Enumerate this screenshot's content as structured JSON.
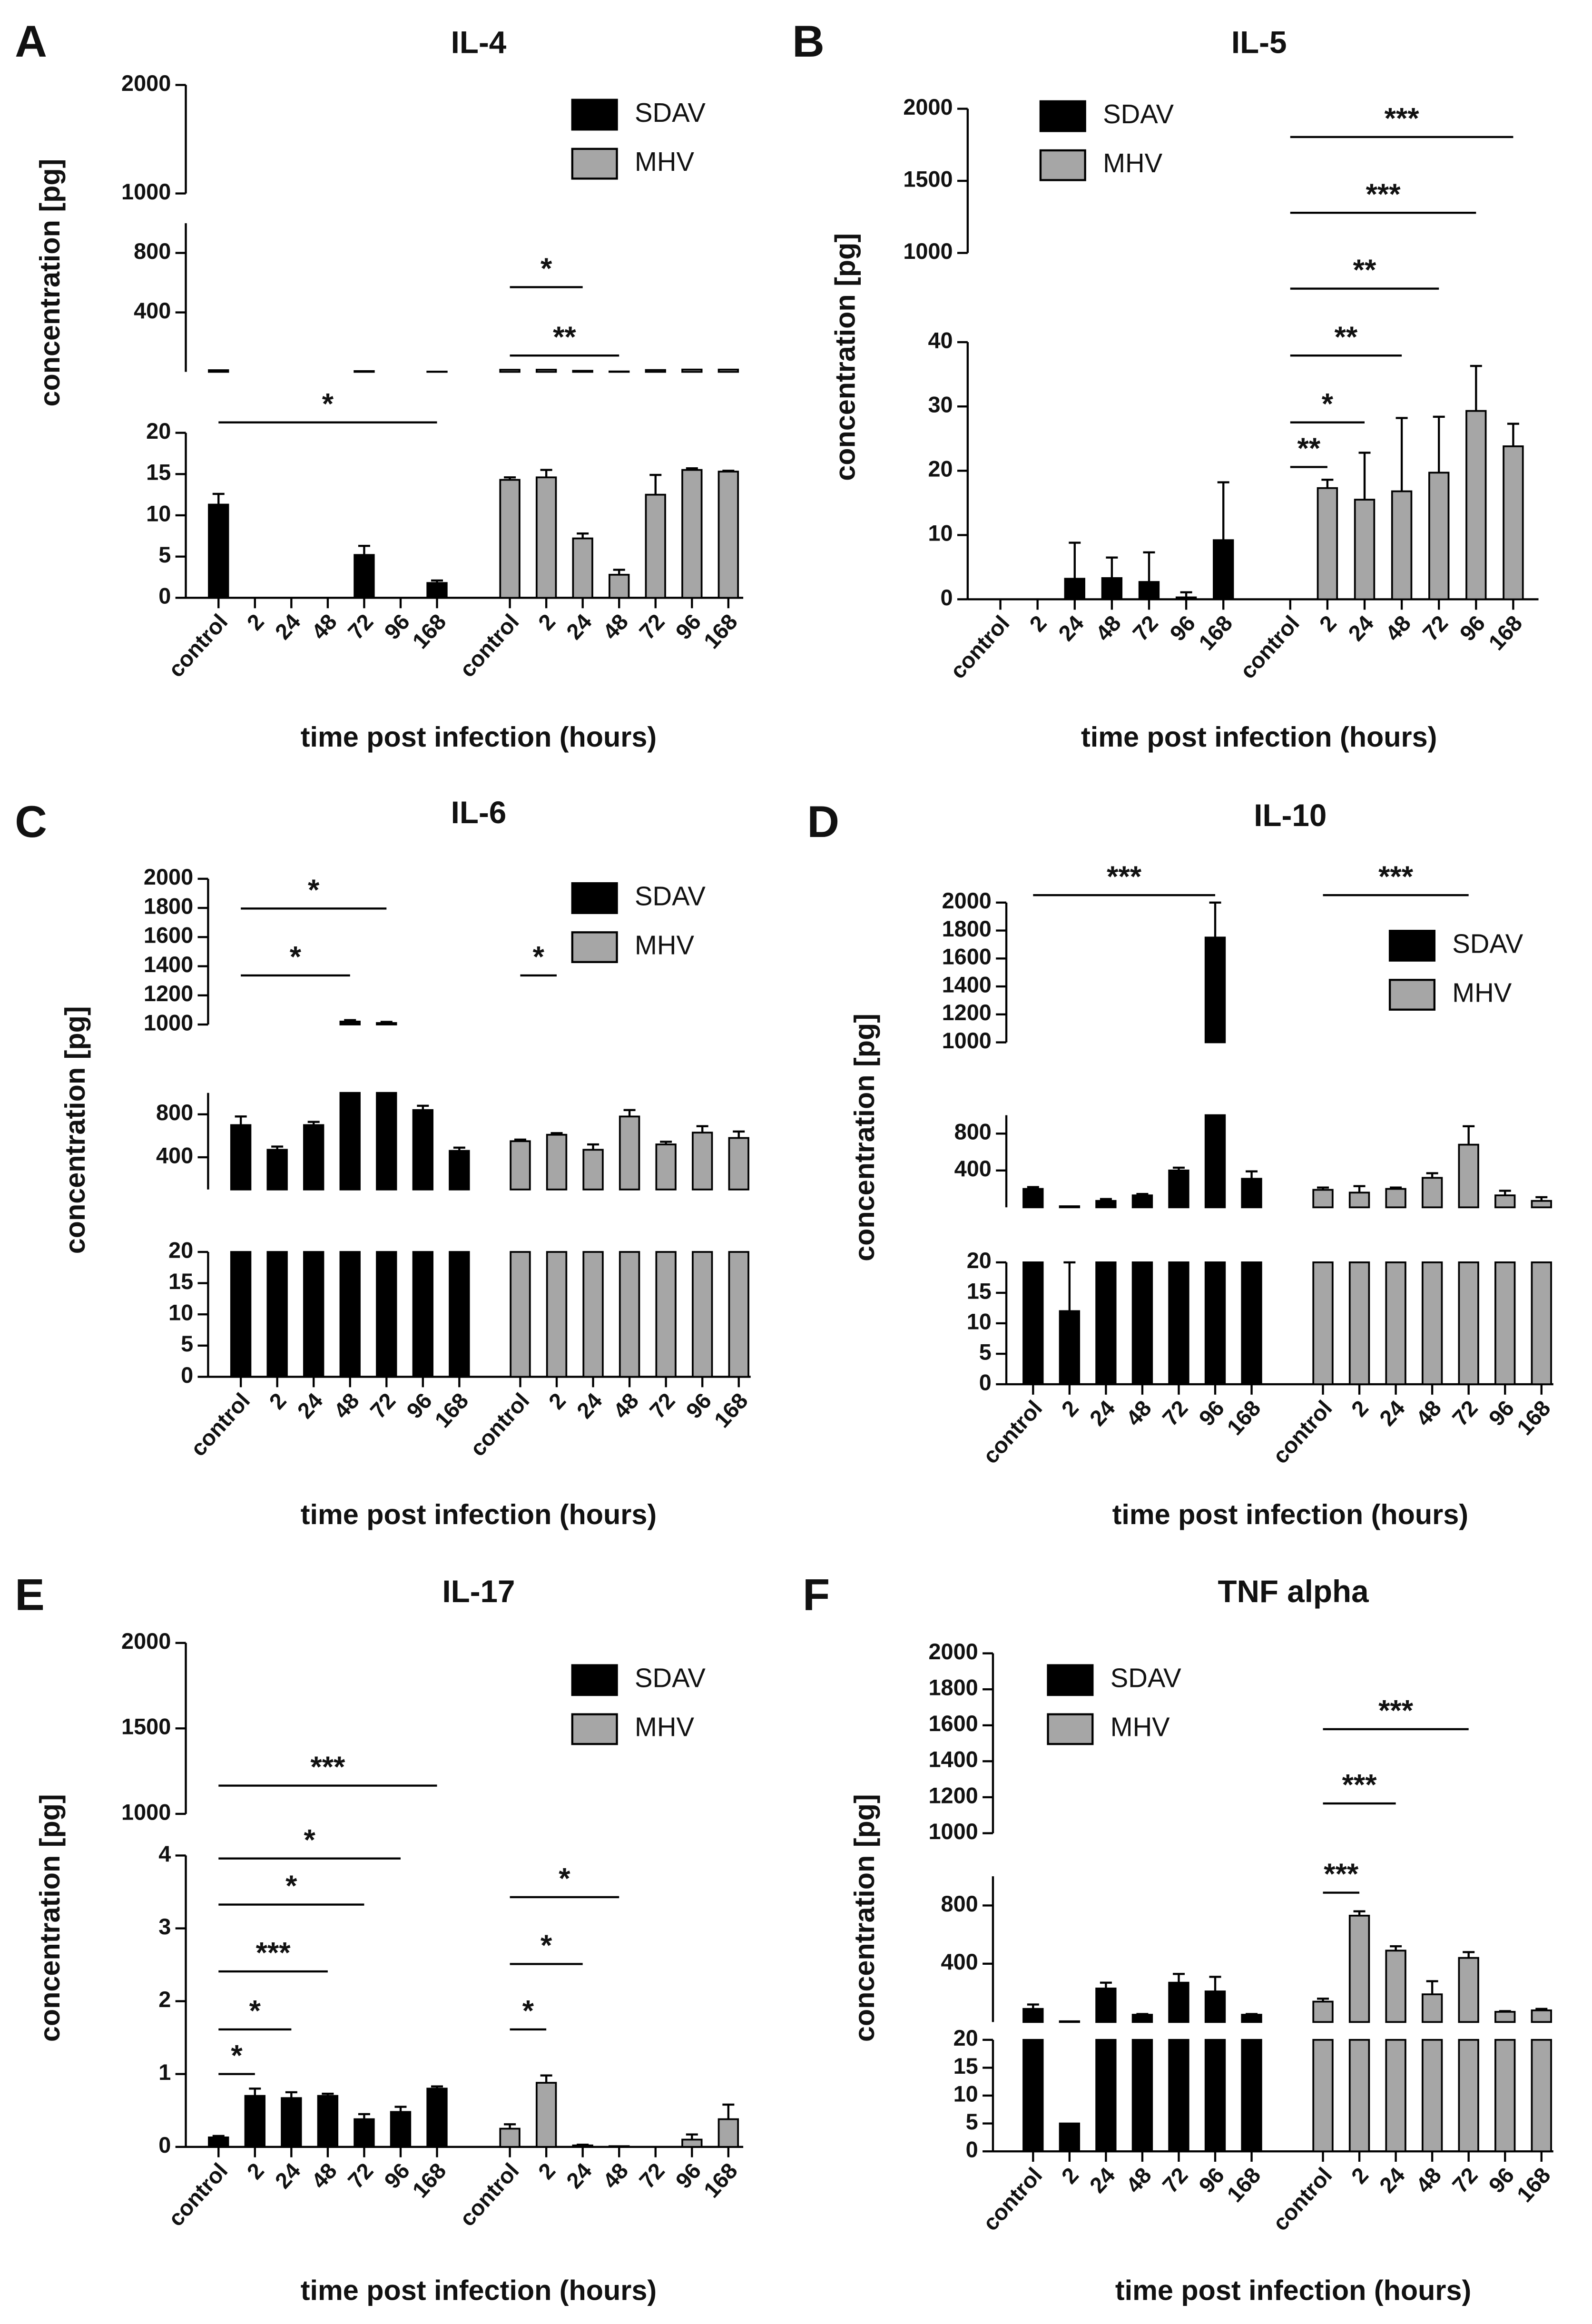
{
  "chart_data": [
    {
      "type": "bar",
      "panel": "A",
      "title": "IL-4",
      "ylabel": "concentration [pg]",
      "xlabel": "time post infection (hours)",
      "categories": [
        "control",
        "2",
        "24",
        "48",
        "72",
        "96",
        "168"
      ],
      "segments": [
        {
          "ylim": [
            0,
            20
          ],
          "yticks": [
            0,
            5,
            10,
            15,
            20
          ]
        },
        {
          "ylim": [
            0,
            1000
          ],
          "yticks": [
            400,
            800
          ]
        },
        {
          "ylim": [
            1000,
            2000
          ],
          "yticks": [
            1000,
            2000
          ]
        }
      ],
      "series": [
        {
          "name": "SDAV",
          "color": "#000000",
          "values": [
            11.3,
            0,
            0,
            0,
            5.2,
            0,
            1.8
          ],
          "errors": [
            1.3,
            0,
            0,
            0,
            1.1,
            0,
            0.3
          ],
          "brackets": [
            {
              "label": "*",
              "to": "168"
            }
          ]
        },
        {
          "name": "MHV",
          "color": "#a6a6a6",
          "values": [
            14.3,
            14.6,
            7.2,
            2.8,
            12.5,
            15.5,
            15.3
          ],
          "errors": [
            0.3,
            0.9,
            0.6,
            0.6,
            2.4,
            0.2,
            0.1
          ],
          "brackets": [
            {
              "label": "*",
              "to": "24"
            },
            {
              "label": "**",
              "to": "48"
            }
          ]
        }
      ]
    },
    {
      "type": "bar",
      "panel": "B",
      "title": "IL-5",
      "ylabel": "concentration [pg]",
      "xlabel": "time post infection (hours)",
      "categories": [
        "control",
        "2",
        "24",
        "48",
        "72",
        "96",
        "168"
      ],
      "segments": [
        {
          "ylim": [
            0,
            40
          ],
          "yticks": [
            0,
            10,
            20,
            30,
            40
          ]
        },
        {
          "ylim": [
            1000,
            2000
          ],
          "yticks": [
            1000,
            1500,
            2000
          ]
        }
      ],
      "series": [
        {
          "name": "SDAV",
          "color": "#000000",
          "values": [
            0,
            0,
            3.2,
            3.3,
            2.7,
            0.3,
            9.2
          ],
          "errors": [
            0,
            0,
            5.6,
            3.2,
            4.6,
            0.8,
            9
          ],
          "brackets": []
        },
        {
          "name": "MHV",
          "color": "#a6a6a6",
          "values": [
            0,
            17.3,
            15.5,
            16.8,
            19.7,
            29.3,
            23.8
          ],
          "errors": [
            0,
            1.3,
            7.3,
            11.4,
            8.7,
            7,
            3.5
          ],
          "brackets": [
            {
              "label": "**",
              "to": "2"
            },
            {
              "label": "*",
              "to": "24"
            },
            {
              "label": "**",
              "to": "48"
            },
            {
              "label": "**",
              "to": "72"
            },
            {
              "label": "***",
              "to": "96"
            },
            {
              "label": "***",
              "to": "168"
            }
          ]
        }
      ]
    },
    {
      "type": "bar",
      "panel": "C",
      "title": "IL-6",
      "ylabel": "concentration [pg]",
      "xlabel": "time post infection (hours)",
      "categories": [
        "control",
        "2",
        "24",
        "48",
        "72",
        "96",
        "168"
      ],
      "segments": [
        {
          "ylim": [
            0,
            20
          ],
          "yticks": [
            0,
            5,
            10,
            15,
            20
          ]
        },
        {
          "ylim": [
            100,
            1000
          ],
          "yticks": [
            400,
            800
          ]
        },
        {
          "ylim": [
            1000,
            2000
          ],
          "yticks": [
            1000,
            1200,
            1400,
            1600,
            1800,
            2000
          ]
        }
      ],
      "series": [
        {
          "name": "SDAV",
          "color": "#000000",
          "values": [
            700,
            470,
            700,
            1020,
            1010,
            840,
            460
          ],
          "errors": [
            80,
            30,
            30,
            10,
            8,
            40,
            30
          ],
          "brackets": [
            {
              "label": "*",
              "to": "72"
            },
            {
              "label": "*",
              "to": "48"
            }
          ]
        },
        {
          "name": "MHV",
          "color": "#a6a6a6",
          "values": [
            550,
            610,
            470,
            780,
            520,
            630,
            580
          ],
          "errors": [
            15,
            15,
            50,
            60,
            25,
            60,
            60
          ],
          "brackets": [
            {
              "label": "*",
              "to": "2"
            }
          ]
        }
      ]
    },
    {
      "type": "bar",
      "panel": "D",
      "title": "IL-10",
      "ylabel": "concentration [pg]",
      "xlabel": "time post infection (hours)",
      "categories": [
        "control",
        "2",
        "24",
        "48",
        "72",
        "96",
        "168"
      ],
      "segments": [
        {
          "ylim": [
            0,
            20
          ],
          "yticks": [
            0,
            5,
            10,
            15,
            20
          ]
        },
        {
          "ylim": [
            0,
            1000
          ],
          "yticks": [
            400,
            800
          ]
        },
        {
          "ylim": [
            1000,
            2000
          ],
          "yticks": [
            1000,
            1200,
            1400,
            1600,
            1800,
            2000
          ]
        }
      ],
      "series": [
        {
          "name": "SDAV",
          "color": "#000000",
          "values": [
            200,
            12,
            70,
            130,
            400,
            1750,
            310
          ],
          "errors": [
            20,
            8,
            20,
            15,
            30,
            250,
            80
          ],
          "brackets": [
            {
              "label": "***",
              "to": "96"
            }
          ]
        },
        {
          "name": "MHV",
          "color": "#a6a6a6",
          "values": [
            190,
            160,
            200,
            320,
            680,
            130,
            70
          ],
          "errors": [
            25,
            70,
            15,
            50,
            200,
            50,
            40
          ],
          "brackets": [
            {
              "label": "***",
              "to": "72"
            }
          ]
        }
      ]
    },
    {
      "type": "bar",
      "panel": "E",
      "title": "IL-17",
      "ylabel": "concentration [pg]",
      "xlabel": "time post infection (hours)",
      "categories": [
        "control",
        "2",
        "24",
        "48",
        "72",
        "96",
        "168"
      ],
      "segments": [
        {
          "ylim": [
            0,
            4
          ],
          "yticks": [
            0,
            1,
            2,
            3,
            4
          ]
        },
        {
          "ylim": [
            1000,
            2000
          ],
          "yticks": [
            1000,
            1500,
            2000
          ]
        }
      ],
      "series": [
        {
          "name": "SDAV",
          "color": "#000000",
          "values": [
            0.13,
            0.7,
            0.67,
            0.7,
            0.38,
            0.48,
            0.8
          ],
          "errors": [
            0.02,
            0.1,
            0.08,
            0.03,
            0.07,
            0.07,
            0.03
          ],
          "brackets": [
            {
              "label": "*",
              "to": "2"
            },
            {
              "label": "*",
              "to": "24"
            },
            {
              "label": "***",
              "to": "48"
            },
            {
              "label": "*",
              "to": "72"
            },
            {
              "label": "*",
              "to": "96"
            },
            {
              "label": "***",
              "to": "168"
            }
          ]
        },
        {
          "name": "MHV",
          "color": "#a6a6a6",
          "values": [
            0.25,
            0.88,
            0.02,
            0.01,
            0,
            0.1,
            0.38
          ],
          "errors": [
            0.06,
            0.1,
            0.01,
            0,
            0,
            0.07,
            0.2
          ],
          "brackets": [
            {
              "label": "*",
              "to": "2"
            },
            {
              "label": "*",
              "to": "24"
            },
            {
              "label": "*",
              "to": "48"
            }
          ]
        }
      ]
    },
    {
      "type": "bar",
      "panel": "F",
      "title": "TNF alpha",
      "ylabel": "concentration [pg]",
      "xlabel": "time post infection (hours)",
      "categories": [
        "control",
        "2",
        "24",
        "48",
        "72",
        "96",
        "168"
      ],
      "segments": [
        {
          "ylim": [
            0,
            20
          ],
          "yticks": [
            0,
            5,
            10,
            15,
            20
          ]
        },
        {
          "ylim": [
            0,
            1000
          ],
          "yticks": [
            400,
            800
          ]
        },
        {
          "ylim": [
            1000,
            2000
          ],
          "yticks": [
            1000,
            1200,
            1400,
            1600,
            1800,
            2000
          ]
        }
      ],
      "series": [
        {
          "name": "SDAV",
          "color": "#000000",
          "values": [
            90,
            5,
            230,
            50,
            270,
            210,
            50
          ],
          "errors": [
            30,
            0,
            40,
            5,
            60,
            100,
            5
          ],
          "brackets": []
        },
        {
          "name": "MHV",
          "color": "#a6a6a6",
          "values": [
            140,
            730,
            490,
            190,
            440,
            70,
            80
          ],
          "errors": [
            20,
            30,
            30,
            90,
            40,
            5,
            10
          ],
          "brackets": [
            {
              "label": "***",
              "to": "2"
            },
            {
              "label": "***",
              "to": "24"
            },
            {
              "label": "***",
              "to": "72"
            }
          ]
        }
      ]
    }
  ]
}
